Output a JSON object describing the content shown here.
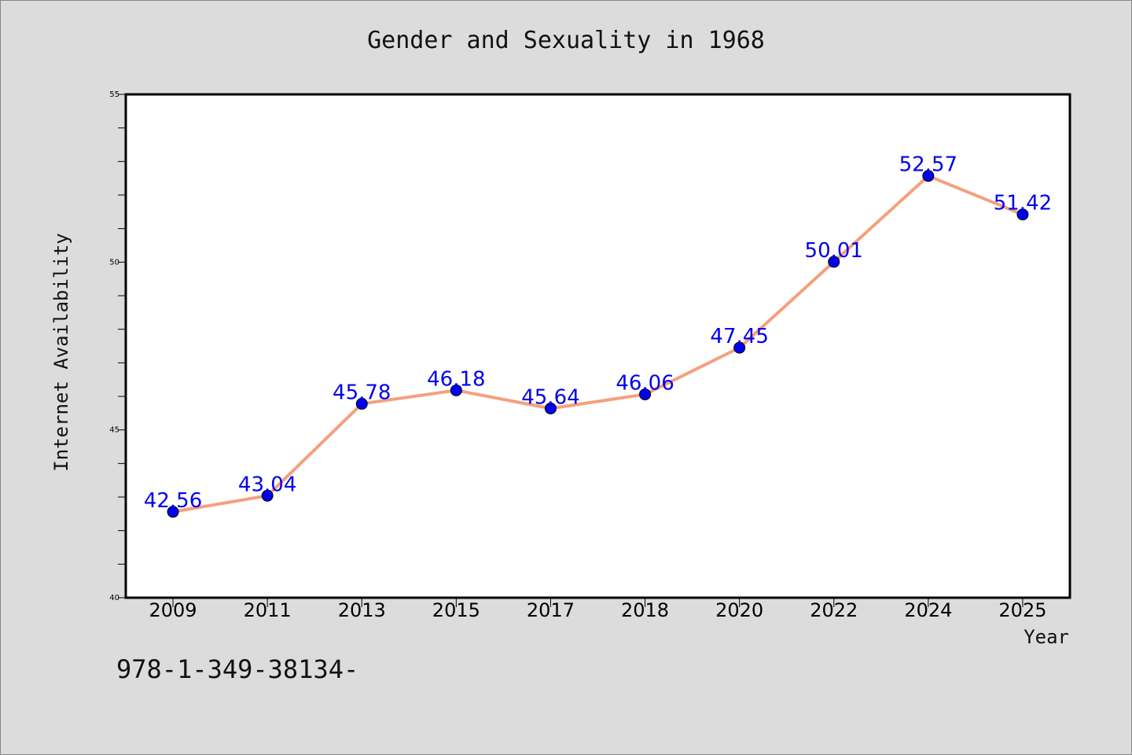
{
  "chart_data": {
    "type": "line",
    "title": "Gender and Sexuality in 1968",
    "xlabel": "Year",
    "ylabel": "Internet Availability",
    "categories": [
      "2009",
      "2011",
      "2013",
      "2015",
      "2017",
      "2018",
      "2020",
      "2022",
      "2024",
      "2025"
    ],
    "values": [
      42.56,
      43.04,
      45.78,
      46.18,
      45.64,
      46.06,
      47.45,
      50.01,
      52.57,
      51.42
    ],
    "data_labels": [
      "42.56",
      "43.04",
      "45.78",
      "46.18",
      "45.64",
      "46.06",
      "47.45",
      "50.01",
      "52.57",
      "51.42"
    ],
    "ylim": [
      40,
      55
    ],
    "yticks": [
      "40",
      "45",
      "50",
      "55"
    ],
    "grid": false,
    "line_color": "#f4a07e",
    "marker_color": "#0000ee",
    "label_color": "#0000ee"
  },
  "footer": {
    "code": "978-1-349-38134-"
  }
}
